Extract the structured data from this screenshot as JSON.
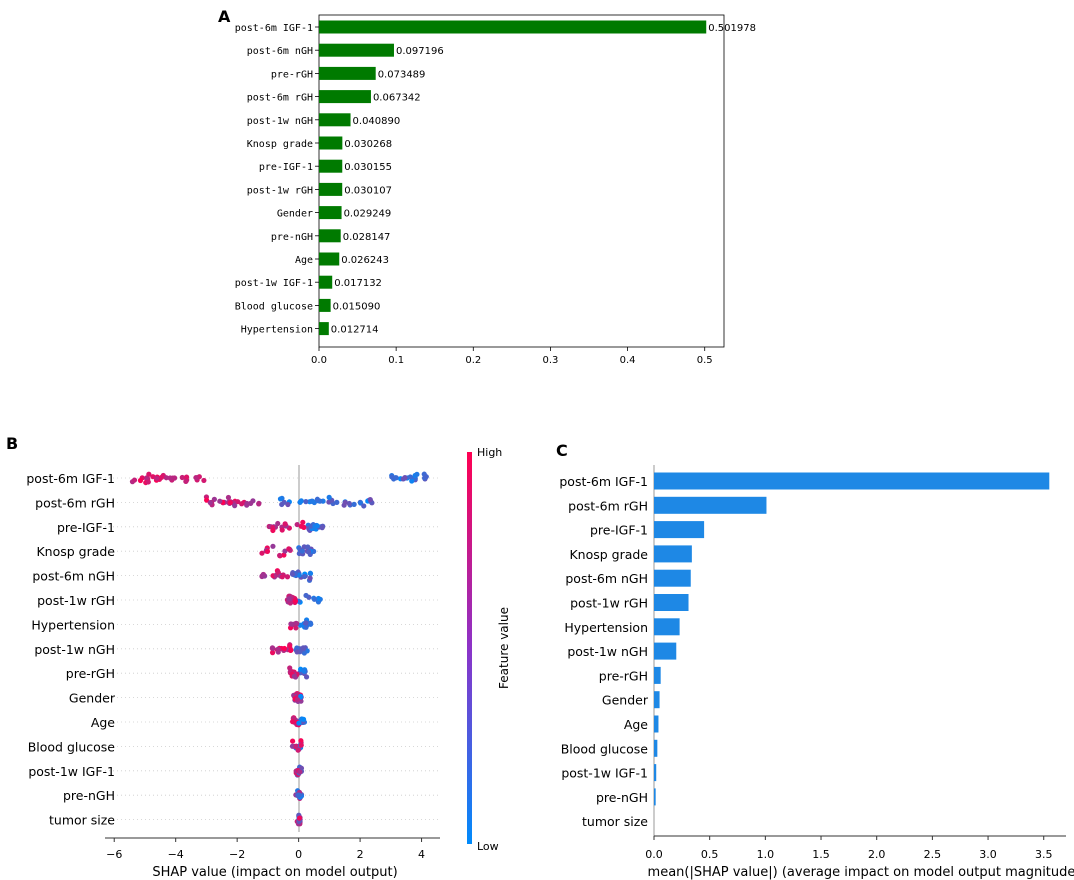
{
  "chart_data": [
    {
      "panel": "A",
      "type": "bar",
      "orientation": "horizontal",
      "categories": [
        "post-6m IGF-1",
        "post-6m nGH",
        "pre-rGH",
        "post-6m rGH",
        "post-1w nGH",
        "Knosp grade",
        "pre-IGF-1",
        "post-1w rGH",
        "Gender",
        "pre-nGH",
        "Age",
        "post-1w IGF-1",
        "Blood glucose",
        "Hypertension"
      ],
      "values": [
        0.501978,
        0.097196,
        0.073489,
        0.067342,
        0.04089,
        0.030268,
        0.030155,
        0.030107,
        0.029249,
        0.028147,
        0.026243,
        0.017132,
        0.01509,
        0.012714
      ],
      "value_labels": [
        "0.501978",
        "0.097196",
        "0.073489",
        "0.067342",
        "0.040890",
        "0.030268",
        "0.030155",
        "0.030107",
        "0.029249",
        "0.028147",
        "0.026243",
        "0.017132",
        "0.015090",
        "0.012714"
      ],
      "xlim": [
        0,
        0.525
      ],
      "xticks": [
        0,
        0.1,
        0.2,
        0.3,
        0.4,
        0.5
      ],
      "xtick_labels": [
        "0.0",
        "0.1",
        "0.2",
        "0.3",
        "0.4",
        "0.5"
      ],
      "color": "#007a00"
    },
    {
      "panel": "B",
      "type": "scatter",
      "subtype": "shap-beeswarm",
      "features": [
        "post-6m IGF-1",
        "post-6m rGH",
        "pre-IGF-1",
        "Knosp grade",
        "post-6m nGH",
        "post-1w rGH",
        "Hypertension",
        "post-1w nGH",
        "pre-rGH",
        "Gender",
        "Age",
        "Blood glucose",
        "post-1w IGF-1",
        "pre-nGH",
        "tumor size"
      ],
      "ranges": [
        [
          -5.5,
          -3.0,
          3.0,
          4.2
        ],
        [
          -3.0,
          -1.2,
          -0.6,
          2.4
        ],
        [
          -1.2,
          0.2,
          0.3,
          0.8
        ],
        [
          -1.2,
          -0.2,
          0.0,
          0.5
        ],
        [
          -1.3,
          -0.3,
          -0.2,
          0.4
        ],
        [
          -0.4,
          -0.1,
          0.0,
          0.8
        ],
        [
          -0.3,
          0.0,
          0.05,
          0.4
        ],
        [
          -0.9,
          -0.2,
          -0.1,
          0.3
        ],
        [
          -0.3,
          0.0,
          0.0,
          0.3
        ],
        [
          -0.2,
          0.1,
          -0.1,
          0.1
        ],
        [
          -0.2,
          0.0,
          0.0,
          0.2
        ],
        [
          -0.2,
          0.1,
          -0.1,
          0.1
        ],
        [
          -0.1,
          0.05,
          -0.05,
          0.1
        ],
        [
          -0.1,
          0.05,
          -0.05,
          0.1
        ],
        [
          -0.05,
          0.05,
          0.0,
          0.05
        ]
      ],
      "xlim": [
        -6.3,
        4.6
      ],
      "xticks": [
        -6,
        -4,
        -2,
        0,
        2,
        4
      ],
      "xtick_labels": [
        "−6",
        "−4",
        "−2",
        "0",
        "2",
        "4"
      ],
      "xlabel": "SHAP value (impact on model output)",
      "colorbar": {
        "label": "Feature value",
        "high": "High",
        "low": "Low",
        "high_color": "#ff0052",
        "low_color": "#008bfb"
      }
    },
    {
      "panel": "C",
      "type": "bar",
      "orientation": "horizontal",
      "categories": [
        "post-6m IGF-1",
        "post-6m rGH",
        "pre-IGF-1",
        "Knosp grade",
        "post-6m nGH",
        "post-1w rGH",
        "Hypertension",
        "post-1w nGH",
        "pre-rGH",
        "Gender",
        "Age",
        "Blood glucose",
        "post-1w IGF-1",
        "pre-nGH",
        "tumor size"
      ],
      "values": [
        3.55,
        1.01,
        0.45,
        0.34,
        0.33,
        0.31,
        0.23,
        0.2,
        0.06,
        0.05,
        0.04,
        0.03,
        0.02,
        0.015,
        0.0
      ],
      "xlim": [
        0,
        3.7
      ],
      "xticks": [
        0,
        0.5,
        1.0,
        1.5,
        2.0,
        2.5,
        3.0,
        3.5
      ],
      "xtick_labels": [
        "0.0",
        "0.5",
        "1.0",
        "1.5",
        "2.0",
        "2.5",
        "3.0",
        "3.5"
      ],
      "xlabel": "mean(|SHAP value|) (average impact on model output magnitude)",
      "color": "#1e88e5"
    }
  ],
  "panel_letters": [
    "A",
    "B",
    "C"
  ]
}
